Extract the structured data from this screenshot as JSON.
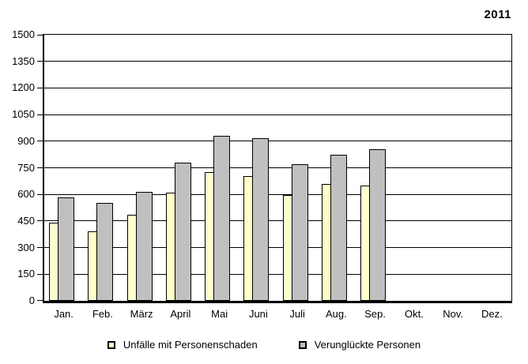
{
  "page": {
    "year_label": "2011"
  },
  "colors": {
    "series1_fill": "#ffffcc",
    "series2_fill": "#c0c0c0",
    "line": "#000000",
    "background": "#ffffff"
  },
  "legend": {
    "items": [
      {
        "label": "Unfälle mit Personenschaden",
        "series": "series1"
      },
      {
        "label": "Verunglückte Personen",
        "series": "series2"
      }
    ]
  },
  "chart_data": {
    "type": "bar",
    "title": "2011",
    "categories": [
      "Jan.",
      "Feb.",
      "März",
      "April",
      "Mai",
      "Juni",
      "Juli",
      "Aug.",
      "Sep.",
      "Okt.",
      "Nov.",
      "Dez."
    ],
    "series": [
      {
        "name": "Unfälle mit Personenschaden",
        "color": "#ffffcc",
        "values": [
          440,
          390,
          485,
          610,
          725,
          705,
          595,
          660,
          650,
          null,
          null,
          null
        ]
      },
      {
        "name": "Verunglückte Personen",
        "color": "#c0c0c0",
        "values": [
          585,
          550,
          615,
          780,
          930,
          915,
          770,
          825,
          855,
          null,
          null,
          null
        ]
      }
    ],
    "xlabel": "",
    "ylabel": "",
    "ylim": [
      0,
      1500
    ],
    "yticks": [
      0,
      150,
      300,
      450,
      600,
      750,
      900,
      1050,
      1200,
      1350,
      1500
    ],
    "grid": true,
    "legend_position": "bottom"
  }
}
